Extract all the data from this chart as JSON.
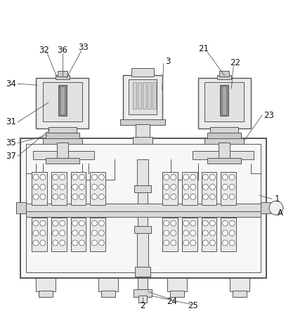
{
  "bg_color": "#ffffff",
  "lc": "#555555",
  "lc_dark": "#333333",
  "fc_light": "#f0f0f0",
  "fc_mid": "#e0e0e0",
  "fc_gray": "#cccccc",
  "fc_dark": "#999999",
  "figsize": [
    4.07,
    4.43
  ],
  "dpi": 100,
  "label_fs": 8.5,
  "label_color": "#111111"
}
